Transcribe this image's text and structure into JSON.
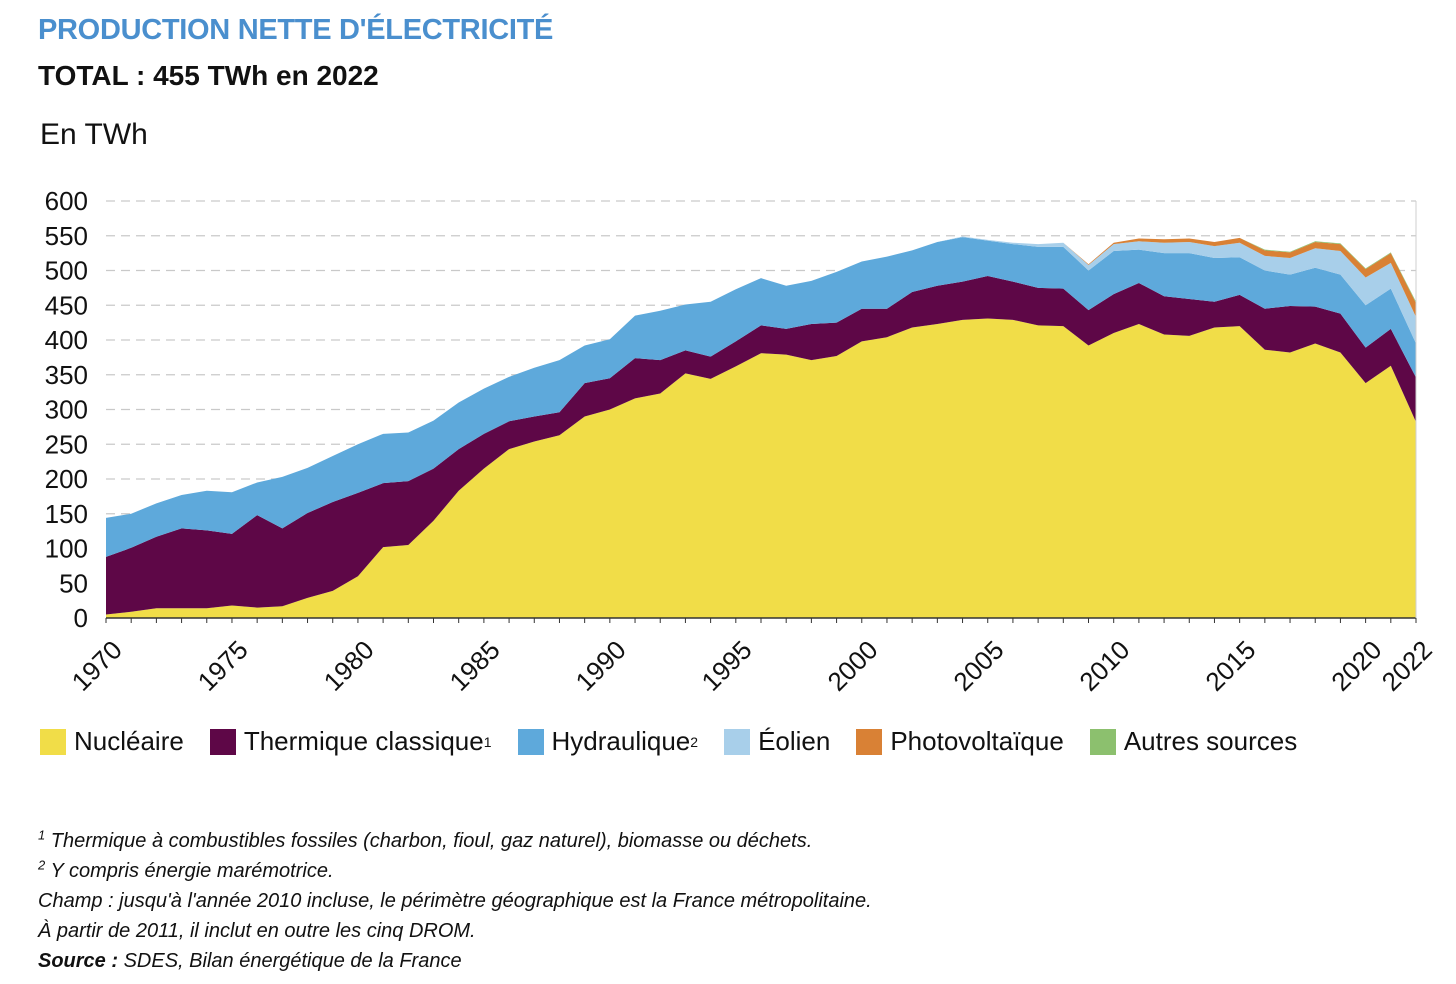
{
  "header": {
    "title": "PRODUCTION NETTE D'ÉLECTRICITÉ",
    "subtitle": "TOTAL : 455 TWh en 2022",
    "unit": "En TWh"
  },
  "colors": {
    "nucleaire": "#f1dd48",
    "thermique": "#5e0747",
    "hydraulique": "#5ea9db",
    "eolien": "#a8cfea",
    "photovoltaique": "#d98135",
    "autres": "#8cc06e"
  },
  "legend": [
    {
      "key": "nucleaire",
      "label": "Nucléaire",
      "sup": ""
    },
    {
      "key": "thermique",
      "label": "Thermique classique",
      "sup": "1"
    },
    {
      "key": "hydraulique",
      "label": "Hydraulique",
      "sup": "2"
    },
    {
      "key": "eolien",
      "label": "Éolien",
      "sup": ""
    },
    {
      "key": "photovoltaique",
      "label": "Photovoltaïque",
      "sup": ""
    },
    {
      "key": "autres",
      "label": "Autres sources",
      "sup": ""
    }
  ],
  "notes": {
    "note1_sup": "1",
    "note1": "Thermique à combustibles fossiles (charbon, fioul, gaz naturel), biomasse ou déchets.",
    "note2_sup": "2",
    "note2": "Y compris énergie marémotrice.",
    "champ1": "Champ : jusqu'à l'année 2010 incluse, le périmètre géographique est la France métropolitaine.",
    "champ2": "À partir de 2011, il inclut en outre les cinq DROM.",
    "source_label": "Source :",
    "source_text": "SDES, Bilan énergétique de la France"
  },
  "chart_data": {
    "type": "area",
    "stacked": true,
    "x": [
      1970,
      1971,
      1972,
      1973,
      1974,
      1975,
      1976,
      1977,
      1978,
      1979,
      1980,
      1981,
      1982,
      1983,
      1984,
      1985,
      1986,
      1987,
      1988,
      1989,
      1990,
      1991,
      1992,
      1993,
      1994,
      1995,
      1996,
      1997,
      1998,
      1999,
      2000,
      2001,
      2002,
      2003,
      2004,
      2005,
      2006,
      2007,
      2008,
      2009,
      2010,
      2011,
      2012,
      2013,
      2014,
      2015,
      2016,
      2017,
      2018,
      2019,
      2020,
      2021,
      2022
    ],
    "xticks": [
      1970,
      1975,
      1980,
      1985,
      1990,
      1995,
      2000,
      2005,
      2010,
      2015,
      2020,
      2022
    ],
    "ylim": [
      0,
      600
    ],
    "yticks": [
      0,
      50,
      100,
      150,
      200,
      250,
      300,
      350,
      400,
      450,
      500,
      550,
      600
    ],
    "grid": true,
    "legend_position": "bottom",
    "series": [
      {
        "key": "nucleaire",
        "name": "Nucléaire",
        "values": [
          5,
          9,
          14,
          14,
          14,
          18,
          15,
          17,
          29,
          39,
          60,
          102,
          105,
          140,
          183,
          215,
          243,
          254,
          263,
          290,
          300,
          316,
          323,
          352,
          344,
          362,
          381,
          379,
          371,
          377,
          398,
          404,
          418,
          423,
          429,
          431,
          429,
          421,
          420,
          392,
          410,
          423,
          408,
          406,
          418,
          420,
          386,
          382,
          395,
          382,
          338,
          363,
          282
        ]
      },
      {
        "key": "thermique",
        "name": "Thermique classique",
        "values": [
          83,
          92,
          103,
          115,
          112,
          103,
          133,
          112,
          122,
          128,
          120,
          92,
          92,
          75,
          60,
          50,
          40,
          36,
          33,
          48,
          45,
          58,
          48,
          33,
          32,
          36,
          40,
          37,
          52,
          48,
          47,
          41,
          51,
          55,
          55,
          61,
          55,
          54,
          54,
          51,
          56,
          59,
          55,
          53,
          37,
          45,
          59,
          67,
          53,
          56,
          51,
          53,
          64
        ]
      },
      {
        "key": "hydraulique",
        "name": "Hydraulique",
        "values": [
          56,
          49,
          48,
          48,
          57,
          60,
          47,
          74,
          65,
          66,
          70,
          71,
          70,
          69,
          67,
          65,
          64,
          70,
          75,
          54,
          56,
          61,
          71,
          66,
          79,
          75,
          68,
          62,
          62,
          73,
          68,
          75,
          60,
          63,
          64,
          51,
          54,
          59,
          60,
          57,
          62,
          48,
          62,
          66,
          63,
          54,
          55,
          45,
          56,
          56,
          61,
          58,
          49
        ]
      },
      {
        "key": "eolien",
        "name": "Éolien",
        "values": [
          0,
          0,
          0,
          0,
          0,
          0,
          0,
          0,
          0,
          0,
          0,
          0,
          0,
          0,
          0,
          0,
          0,
          0,
          0,
          0,
          0,
          0,
          0,
          0,
          0,
          0,
          0,
          0,
          0,
          0,
          0,
          0,
          0,
          0,
          1,
          1,
          2,
          4,
          6,
          8,
          10,
          12,
          15,
          16,
          17,
          21,
          21,
          24,
          28,
          34,
          40,
          37,
          38
        ]
      },
      {
        "key": "photovoltaique",
        "name": "Photovoltaïque",
        "values": [
          0,
          0,
          0,
          0,
          0,
          0,
          0,
          0,
          0,
          0,
          0,
          0,
          0,
          0,
          0,
          0,
          0,
          0,
          0,
          0,
          0,
          0,
          0,
          0,
          0,
          0,
          0,
          0,
          0,
          0,
          0,
          0,
          0,
          0,
          0,
          0,
          0,
          0,
          0,
          1,
          2,
          4,
          5,
          5,
          6,
          7,
          8,
          8,
          9,
          10,
          12,
          14,
          20
        ]
      },
      {
        "key": "autres",
        "name": "Autres sources",
        "values": [
          0,
          0,
          0,
          0,
          0,
          0,
          0,
          0,
          0,
          0,
          0,
          0,
          0,
          0,
          0,
          0,
          0,
          0,
          0,
          0,
          0,
          0,
          0,
          0,
          0,
          0,
          0,
          0,
          0,
          0,
          0,
          0,
          0,
          0,
          0,
          0,
          0,
          0,
          0,
          0,
          0,
          0,
          0,
          0,
          0,
          0,
          1,
          1,
          1,
          1,
          1,
          1,
          2
        ]
      }
    ]
  }
}
